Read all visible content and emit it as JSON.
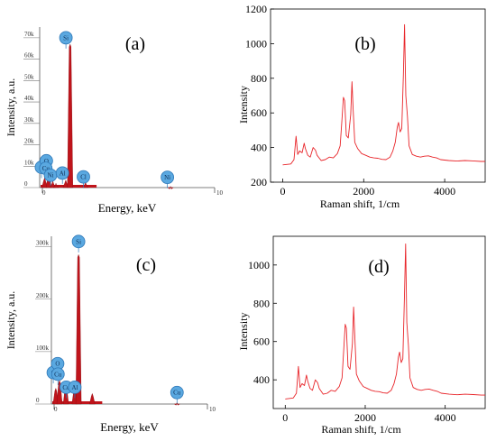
{
  "chart_data": [
    {
      "panel": "(a)",
      "type": "bar",
      "xlabel": "Energy, keV",
      "ylabel": "Intensity, a.u.",
      "xlim": [
        0,
        10
      ],
      "ylim": [
        0,
        75000
      ],
      "x_ticks": [
        "0",
        "10"
      ],
      "y_ticks": [
        {
          "value": 0,
          "label": "0"
        },
        {
          "value": 10000,
          "label": "10k"
        },
        {
          "value": 20000,
          "label": "20k"
        },
        {
          "value": 30000,
          "label": "30k"
        },
        {
          "value": 40000,
          "label": "40k"
        },
        {
          "value": 50000,
          "label": "50k"
        },
        {
          "value": 60000,
          "label": "60k"
        },
        {
          "value": 70000,
          "label": "70k"
        }
      ],
      "peaks": [
        {
          "x": 0.28,
          "y": 4500
        },
        {
          "x": 0.52,
          "y": 6500
        },
        {
          "x": 0.75,
          "y": 3000
        },
        {
          "x": 0.93,
          "y": 2000
        },
        {
          "x": 1.49,
          "y": 3500
        },
        {
          "x": 1.74,
          "y": 67000
        },
        {
          "x": 2.62,
          "y": 2500
        },
        {
          "x": 7.48,
          "y": 600
        }
      ],
      "element_labels": [
        {
          "text": "C",
          "x": 0.1,
          "y": 9500
        },
        {
          "text": "O",
          "x": 0.38,
          "y": 12500
        },
        {
          "text": "Cu",
          "x": 0.35,
          "y": 9000
        },
        {
          "text": "Ni",
          "x": 0.62,
          "y": 5800
        },
        {
          "text": "Al",
          "x": 1.3,
          "y": 6800
        },
        {
          "text": "Si",
          "x": 1.5,
          "y": 70000
        },
        {
          "text": "Cl",
          "x": 2.5,
          "y": 5000
        },
        {
          "text": "Ni",
          "x": 7.3,
          "y": 4800
        }
      ]
    },
    {
      "panel": "(b)",
      "type": "line",
      "xlabel": "Raman shift, 1/cm",
      "ylabel": "Intensity",
      "xlim": [
        -300,
        5000
      ],
      "ylim": [
        200,
        1200
      ],
      "x_ticks": [
        0,
        2000,
        4000
      ],
      "y_ticks": [
        200,
        400,
        600,
        800,
        1000,
        1200
      ],
      "series": [
        {
          "color": "#e8252a",
          "points": [
            [
              0,
              300
            ],
            [
              200,
              305
            ],
            [
              280,
              330
            ],
            [
              330,
              465
            ],
            [
              370,
              360
            ],
            [
              420,
              380
            ],
            [
              480,
              370
            ],
            [
              530,
              425
            ],
            [
              560,
              395
            ],
            [
              620,
              355
            ],
            [
              680,
              345
            ],
            [
              750,
              400
            ],
            [
              810,
              385
            ],
            [
              850,
              355
            ],
            [
              950,
              325
            ],
            [
              1050,
              330
            ],
            [
              1150,
              345
            ],
            [
              1250,
              340
            ],
            [
              1350,
              365
            ],
            [
              1420,
              410
            ],
            [
              1470,
              585
            ],
            [
              1500,
              690
            ],
            [
              1530,
              670
            ],
            [
              1570,
              470
            ],
            [
              1620,
              455
            ],
            [
              1680,
              590
            ],
            [
              1710,
              780
            ],
            [
              1740,
              620
            ],
            [
              1780,
              430
            ],
            [
              1850,
              395
            ],
            [
              1950,
              365
            ],
            [
              2050,
              355
            ],
            [
              2150,
              345
            ],
            [
              2250,
              340
            ],
            [
              2350,
              338
            ],
            [
              2450,
              332
            ],
            [
              2550,
              330
            ],
            [
              2650,
              345
            ],
            [
              2720,
              380
            ],
            [
              2780,
              430
            ],
            [
              2830,
              520
            ],
            [
              2860,
              545
            ],
            [
              2900,
              490
            ],
            [
              2940,
              510
            ],
            [
              2980,
              820
            ],
            [
              3010,
              1110
            ],
            [
              3040,
              700
            ],
            [
              3080,
              580
            ],
            [
              3120,
              410
            ],
            [
              3200,
              360
            ],
            [
              3300,
              350
            ],
            [
              3400,
              345
            ],
            [
              3500,
              350
            ],
            [
              3600,
              352
            ],
            [
              3700,
              345
            ],
            [
              3800,
              340
            ],
            [
              3900,
              330
            ],
            [
              4100,
              325
            ],
            [
              4300,
              322
            ],
            [
              4500,
              325
            ],
            [
              4700,
              323
            ],
            [
              4900,
              320
            ],
            [
              5000,
              320
            ]
          ]
        }
      ]
    },
    {
      "panel": "(c)",
      "type": "bar",
      "xlabel": "Energy, keV",
      "ylabel": "Intensity, a.u.",
      "xlim": [
        0,
        10
      ],
      "ylim": [
        0,
        320000
      ],
      "x_ticks": [
        "0",
        "10"
      ],
      "y_ticks": [
        {
          "value": 0,
          "label": "0"
        },
        {
          "value": 100000,
          "label": "100k"
        },
        {
          "value": 200000,
          "label": "200k"
        },
        {
          "value": 300000,
          "label": "300k"
        }
      ],
      "peaks": [
        {
          "x": 0.28,
          "y": 30000
        },
        {
          "x": 0.52,
          "y": 45000
        },
        {
          "x": 0.93,
          "y": 35000
        },
        {
          "x": 1.49,
          "y": 30000
        },
        {
          "x": 1.74,
          "y": 285000
        },
        {
          "x": 2.62,
          "y": 20000
        },
        {
          "x": 8.05,
          "y": 3000
        }
      ],
      "element_labels": [
        {
          "text": "C",
          "x": 0.12,
          "y": 60000
        },
        {
          "text": "O",
          "x": 0.4,
          "y": 77000
        },
        {
          "text": "Cu",
          "x": 0.42,
          "y": 57000
        },
        {
          "text": "Cu",
          "x": 0.95,
          "y": 32000
        },
        {
          "text": "Al",
          "x": 1.5,
          "y": 32000
        },
        {
          "text": "Si",
          "x": 1.74,
          "y": 310000
        },
        {
          "text": "Cu",
          "x": 8.05,
          "y": 22000
        }
      ]
    },
    {
      "panel": "(d)",
      "type": "line",
      "xlabel": "Raman shift, 1/cm",
      "ylabel": "Intensity",
      "xlim": [
        -300,
        5000
      ],
      "ylim": [
        250,
        1150
      ],
      "x_ticks": [
        0,
        2000,
        4000
      ],
      "y_ticks": [
        400,
        600,
        800,
        1000
      ],
      "series": [
        {
          "color": "#e8252a",
          "points": [
            [
              0,
              300
            ],
            [
              200,
              305
            ],
            [
              280,
              330
            ],
            [
              330,
              470
            ],
            [
              370,
              360
            ],
            [
              420,
              380
            ],
            [
              480,
              370
            ],
            [
              530,
              425
            ],
            [
              560,
              395
            ],
            [
              620,
              355
            ],
            [
              680,
              345
            ],
            [
              750,
              400
            ],
            [
              810,
              385
            ],
            [
              850,
              355
            ],
            [
              950,
              325
            ],
            [
              1050,
              330
            ],
            [
              1150,
              345
            ],
            [
              1250,
              340
            ],
            [
              1350,
              365
            ],
            [
              1420,
              410
            ],
            [
              1470,
              585
            ],
            [
              1500,
              690
            ],
            [
              1530,
              670
            ],
            [
              1570,
              470
            ],
            [
              1620,
              455
            ],
            [
              1680,
              590
            ],
            [
              1710,
              780
            ],
            [
              1740,
              620
            ],
            [
              1780,
              430
            ],
            [
              1850,
              395
            ],
            [
              1950,
              365
            ],
            [
              2050,
              355
            ],
            [
              2150,
              345
            ],
            [
              2250,
              340
            ],
            [
              2350,
              338
            ],
            [
              2450,
              332
            ],
            [
              2550,
              330
            ],
            [
              2650,
              345
            ],
            [
              2720,
              380
            ],
            [
              2780,
              430
            ],
            [
              2830,
              520
            ],
            [
              2860,
              545
            ],
            [
              2900,
              490
            ],
            [
              2940,
              510
            ],
            [
              2980,
              820
            ],
            [
              3010,
              1110
            ],
            [
              3040,
              700
            ],
            [
              3080,
              580
            ],
            [
              3120,
              410
            ],
            [
              3200,
              360
            ],
            [
              3300,
              350
            ],
            [
              3400,
              345
            ],
            [
              3500,
              350
            ],
            [
              3600,
              352
            ],
            [
              3700,
              345
            ],
            [
              3800,
              340
            ],
            [
              3900,
              330
            ],
            [
              4100,
              325
            ],
            [
              4300,
              322
            ],
            [
              4500,
              325
            ],
            [
              4700,
              323
            ],
            [
              4900,
              320
            ],
            [
              5000,
              320
            ]
          ]
        }
      ]
    }
  ]
}
